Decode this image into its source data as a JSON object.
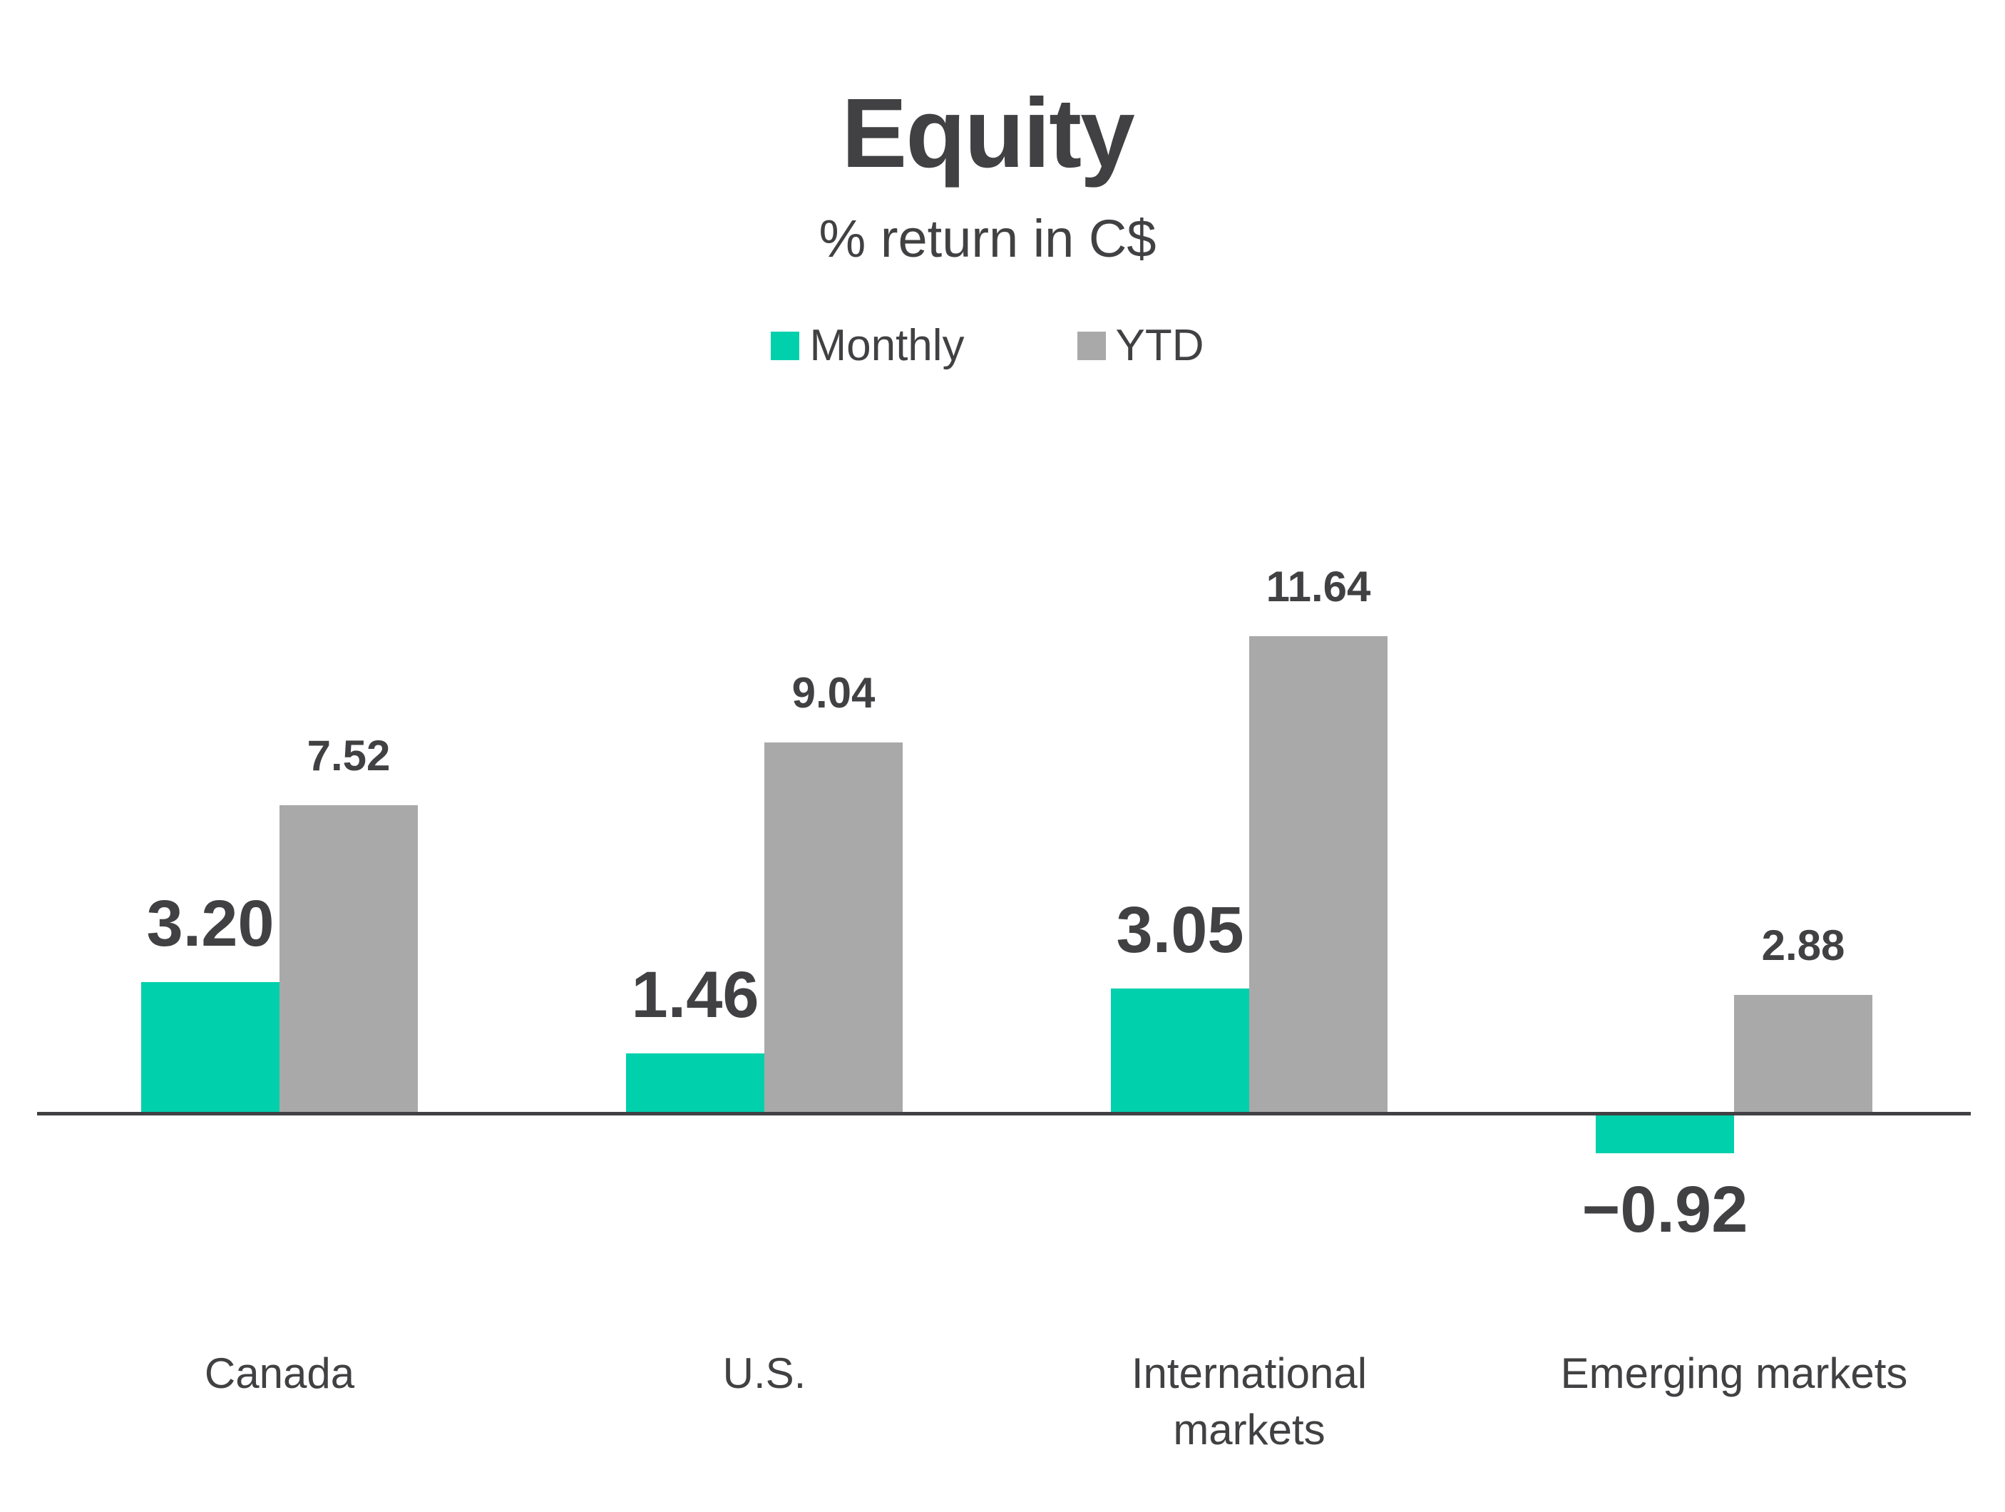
{
  "title": "Equity",
  "subtitle": "% return in C$",
  "legend": {
    "items": [
      {
        "label": "Monthly",
        "color": "#00d0ac"
      },
      {
        "label": "YTD",
        "color": "#a9a9a9"
      }
    ]
  },
  "colors": {
    "monthly_bar": "#00d0ac",
    "ytd_bar": "#a9a9a9",
    "text": "#414042",
    "axis": "#414042",
    "background": "#ffffff"
  },
  "chart_data": {
    "type": "bar",
    "title": "Equity",
    "subtitle": "% return in C$",
    "categories": [
      "Canada",
      "U.S.",
      "International markets",
      "Emerging markets"
    ],
    "series": [
      {
        "name": "Monthly",
        "color": "#00d0ac",
        "values": [
          3.2,
          1.46,
          3.05,
          -0.92
        ],
        "labels": [
          "3.20",
          "1.46",
          "3.05",
          "−0.92"
        ]
      },
      {
        "name": "YTD",
        "color": "#a9a9a9",
        "values": [
          7.52,
          9.04,
          11.64,
          2.88
        ],
        "labels": [
          "7.52",
          "9.04",
          "11.64",
          "2.88"
        ]
      }
    ],
    "value_labels_shown": true,
    "baseline": 0,
    "ylim": [
      -1.5,
      12.5
    ],
    "grid": false,
    "y_axis_shown": false,
    "legend_position": "top"
  }
}
